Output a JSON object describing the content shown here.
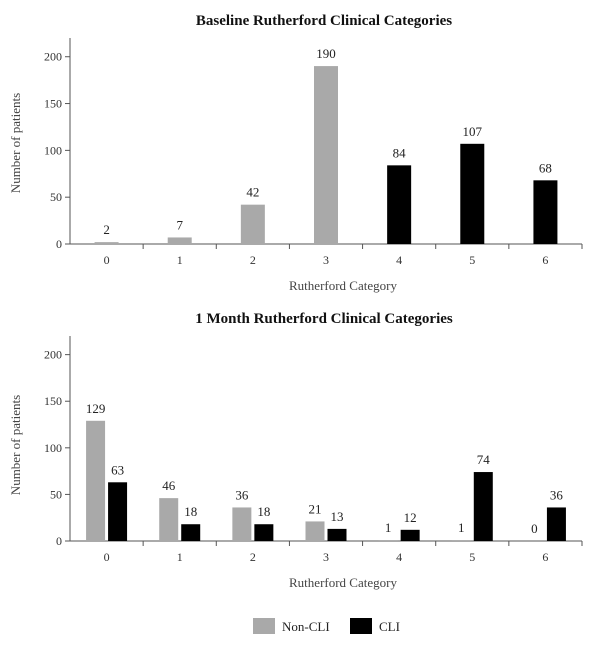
{
  "colors": {
    "non_cli": "#a9a9a9",
    "cli": "#000000",
    "axis": "#555555"
  },
  "legend": {
    "items": [
      {
        "label": "Non-CLI",
        "color": "#a9a9a9"
      },
      {
        "label": "CLI",
        "color": "#000000"
      }
    ],
    "placement": "bottom-center"
  },
  "chart_data": [
    {
      "type": "bar",
      "title": "Baseline Rutherford Clinical Categories",
      "xlabel": "Rutherford Category",
      "ylabel": "Number of patients",
      "ylim": [
        0,
        220
      ],
      "yticks": [
        0,
        50,
        100,
        150,
        200
      ],
      "categories": [
        "0",
        "1",
        "2",
        "3",
        "4",
        "5",
        "6"
      ],
      "series": [
        {
          "name": "Non-CLI",
          "color": "#a9a9a9",
          "values": [
            2,
            7,
            42,
            190,
            null,
            null,
            null
          ]
        },
        {
          "name": "CLI",
          "color": "#000000",
          "values": [
            null,
            null,
            null,
            null,
            84,
            107,
            68
          ]
        }
      ],
      "grid": false
    },
    {
      "type": "bar",
      "title": "1 Month Rutherford Clinical Categories",
      "xlabel": "Rutherford Category",
      "ylabel": "Number of patients",
      "ylim": [
        0,
        220
      ],
      "yticks": [
        0,
        50,
        100,
        150,
        200
      ],
      "categories": [
        "0",
        "1",
        "2",
        "3",
        "4",
        "5",
        "6"
      ],
      "series": [
        {
          "name": "Non-CLI",
          "color": "#a9a9a9",
          "values": [
            129,
            46,
            36,
            21,
            1,
            1,
            0
          ]
        },
        {
          "name": "CLI",
          "color": "#000000",
          "values": [
            63,
            18,
            18,
            13,
            12,
            74,
            36
          ]
        }
      ],
      "grid": false
    }
  ]
}
